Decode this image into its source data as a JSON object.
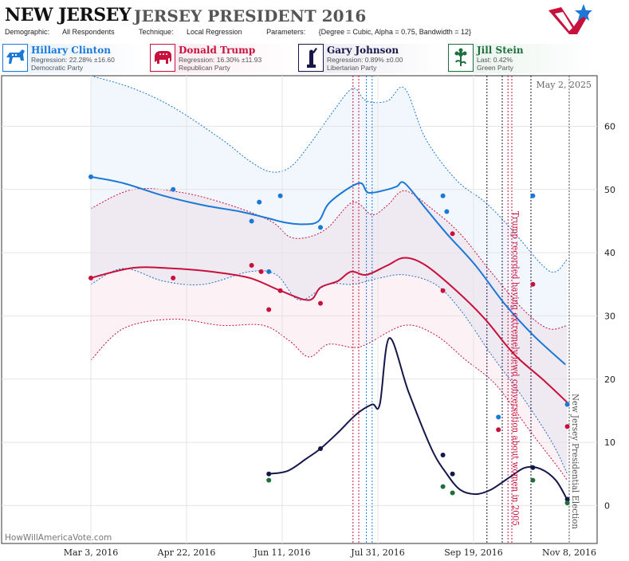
{
  "header": {
    "state": "NEW JERSEY",
    "race": "JERSEY PRESIDENT 2016",
    "demographic_label": "Demographic:",
    "demographic": "All Respondents",
    "technique_label": "Technique:",
    "technique": "Local Regression",
    "parameters_label": "Parameters:",
    "parameters": "{Degree = Cubic, Alpha = 0.75, Bandwidth = 12}"
  },
  "candidates": [
    {
      "name": "Hillary Clinton",
      "stat": "Regression: 22.28% ±16.60",
      "party": "Democratic Party",
      "color": "#1a78d6",
      "bg": "#e6f0fb",
      "icon": "donkey-icon"
    },
    {
      "name": "Donald Trump",
      "stat": "Regression: 16.30% ±11.93",
      "party": "Republican Party",
      "color": "#c8103c",
      "bg": "#fbe8ee",
      "icon": "elephant-icon"
    },
    {
      "name": "Gary Johnson",
      "stat": "Regression: 0.89% ±0.00",
      "party": "Libertarian Party",
      "color": "#15164a",
      "bg": "#e9e9f1",
      "icon": "liberty-statue-icon"
    },
    {
      "name": "Jill Stein",
      "stat": "Last: 0.42%",
      "party": "Green Party",
      "color": "#1f6f3c",
      "bg": "#e6f2ea",
      "icon": "flower-icon"
    }
  ],
  "chart_data": {
    "type": "line",
    "date_label": "May 2, 2025",
    "watermark": "HowWillAmericaVote.com",
    "x_tick_labels": [
      "Mar 3, 2016",
      "Apr 22, 2016",
      "Jun 11, 2016",
      "Jul 31, 2016",
      "Sep 19, 2016",
      "Nov 8, 2016"
    ],
    "y_ticks": [
      0,
      10,
      20,
      30,
      40,
      50,
      60
    ],
    "y_range": [
      -6,
      68
    ],
    "x_range": [
      "2016-03-03",
      "2016-11-08"
    ],
    "annotations": [
      {
        "text": "Trump recorded having extremely lewd conversation about women in 2005",
        "date": "2016-10-07",
        "color": "#c8103c"
      },
      {
        "text": "New Jersey Presidential Election",
        "date": "2016-11-08",
        "color": "#555555"
      }
    ],
    "event_lines": [
      {
        "date": "2016-07-18",
        "color": "#c8103c"
      },
      {
        "date": "2016-07-21",
        "color": "#c8103c"
      },
      {
        "date": "2016-07-25",
        "color": "#1a78d6"
      },
      {
        "date": "2016-07-28",
        "color": "#1a78d6"
      },
      {
        "date": "2016-09-26",
        "color": "#15164a"
      },
      {
        "date": "2016-10-04",
        "color": "#15164a"
      },
      {
        "date": "2016-10-09",
        "color": "#c8103c"
      },
      {
        "date": "2016-10-19",
        "color": "#15164a"
      }
    ],
    "series": [
      {
        "name": "Hillary Clinton",
        "color": "#1a78d6",
        "line": [
          [
            "2016-03-03",
            52.0
          ],
          [
            "2016-03-20",
            51.0
          ],
          [
            "2016-04-10",
            49.0
          ],
          [
            "2016-05-01",
            47.5
          ],
          [
            "2016-05-20",
            46.5
          ],
          [
            "2016-06-03",
            45.5
          ],
          [
            "2016-06-12",
            44.8
          ],
          [
            "2016-06-22",
            44.5
          ],
          [
            "2016-06-30",
            45.0
          ],
          [
            "2016-07-06",
            48.0
          ],
          [
            "2016-07-21",
            51.0
          ],
          [
            "2016-07-26",
            49.5
          ],
          [
            "2016-08-05",
            50.0
          ],
          [
            "2016-08-10",
            50.5
          ],
          [
            "2016-08-14",
            51.0
          ],
          [
            "2016-08-25",
            47.0
          ],
          [
            "2016-09-05",
            43.0
          ],
          [
            "2016-09-20",
            38.0
          ],
          [
            "2016-10-05",
            32.0
          ],
          [
            "2016-10-20",
            27.0
          ],
          [
            "2016-11-06",
            22.3
          ]
        ],
        "upper": [
          [
            "2016-03-03",
            68.0
          ],
          [
            "2016-03-25",
            66.0
          ],
          [
            "2016-04-15",
            63.0
          ],
          [
            "2016-05-10",
            58.0
          ],
          [
            "2016-05-25",
            54.5
          ],
          [
            "2016-06-05",
            52.8
          ],
          [
            "2016-06-15",
            53.5
          ],
          [
            "2016-06-25",
            57.0
          ],
          [
            "2016-07-08",
            62.5
          ],
          [
            "2016-07-18",
            66.0
          ],
          [
            "2016-07-25",
            64.0
          ],
          [
            "2016-08-05",
            64.0
          ],
          [
            "2016-08-14",
            66.0
          ],
          [
            "2016-08-25",
            58.0
          ],
          [
            "2016-09-10",
            51.5
          ],
          [
            "2016-09-25",
            48.0
          ],
          [
            "2016-10-08",
            44.0
          ],
          [
            "2016-10-25",
            38.0
          ],
          [
            "2016-11-01",
            37.0
          ],
          [
            "2016-11-07",
            39.0
          ]
        ],
        "lower": [
          [
            "2016-03-03",
            35.0
          ],
          [
            "2016-03-20",
            37.5
          ],
          [
            "2016-04-10",
            35.5
          ],
          [
            "2016-05-01",
            35.0
          ],
          [
            "2016-05-25",
            37.0
          ],
          [
            "2016-06-08",
            36.5
          ],
          [
            "2016-06-20",
            32.5
          ],
          [
            "2016-07-05",
            35.0
          ],
          [
            "2016-07-18",
            35.0
          ],
          [
            "2016-08-01",
            36.0
          ],
          [
            "2016-08-14",
            36.5
          ],
          [
            "2016-08-30",
            35.0
          ],
          [
            "2016-09-12",
            31.0
          ],
          [
            "2016-09-28",
            24.0
          ],
          [
            "2016-10-15",
            17.0
          ],
          [
            "2016-10-30",
            10.0
          ],
          [
            "2016-11-07",
            5.0
          ]
        ],
        "points": [
          [
            "2016-03-03",
            52
          ],
          [
            "2016-04-15",
            50
          ],
          [
            "2016-05-26",
            45
          ],
          [
            "2016-05-30",
            48
          ],
          [
            "2016-06-04",
            37
          ],
          [
            "2016-06-10",
            49
          ],
          [
            "2016-07-01",
            44
          ],
          [
            "2016-09-03",
            49
          ],
          [
            "2016-09-05",
            46.5
          ],
          [
            "2016-10-02",
            14
          ],
          [
            "2016-10-20",
            49
          ],
          [
            "2016-11-07",
            16
          ]
        ]
      },
      {
        "name": "Donald Trump",
        "color": "#c8103c",
        "line": [
          [
            "2016-03-03",
            36.0
          ],
          [
            "2016-03-25",
            37.6
          ],
          [
            "2016-04-15",
            37.5
          ],
          [
            "2016-05-05",
            37.0
          ],
          [
            "2016-05-25",
            36.0
          ],
          [
            "2016-06-10",
            34.0
          ],
          [
            "2016-06-25",
            32.5
          ],
          [
            "2016-07-01",
            34.5
          ],
          [
            "2016-07-10",
            35.5
          ],
          [
            "2016-07-17",
            37.0
          ],
          [
            "2016-07-25",
            36.5
          ],
          [
            "2016-08-05",
            38.0
          ],
          [
            "2016-08-14",
            39.2
          ],
          [
            "2016-08-25",
            38.0
          ],
          [
            "2016-09-10",
            34.0
          ],
          [
            "2016-09-25",
            29.5
          ],
          [
            "2016-10-10",
            24.0
          ],
          [
            "2016-10-25",
            20.0
          ],
          [
            "2016-11-07",
            16.3
          ]
        ],
        "upper": [
          [
            "2016-03-03",
            47.0
          ],
          [
            "2016-03-25",
            50.0
          ],
          [
            "2016-04-20",
            49.5
          ],
          [
            "2016-05-15",
            47.5
          ],
          [
            "2016-06-05",
            45.0
          ],
          [
            "2016-06-15",
            42.5
          ],
          [
            "2016-06-25",
            42.5
          ],
          [
            "2016-07-05",
            44.0
          ],
          [
            "2016-07-18",
            48.0
          ],
          [
            "2016-07-28",
            46.0
          ],
          [
            "2016-08-05",
            47.5
          ],
          [
            "2016-08-14",
            49.8
          ],
          [
            "2016-08-28",
            47.0
          ],
          [
            "2016-09-12",
            43.0
          ],
          [
            "2016-09-28",
            37.0
          ],
          [
            "2016-10-15",
            31.0
          ],
          [
            "2016-10-28",
            28.0
          ],
          [
            "2016-11-07",
            28.5
          ]
        ],
        "lower": [
          [
            "2016-03-03",
            23.0
          ],
          [
            "2016-03-20",
            28.0
          ],
          [
            "2016-04-15",
            29.5
          ],
          [
            "2016-05-10",
            28.5
          ],
          [
            "2016-06-01",
            28.5
          ],
          [
            "2016-06-15",
            26.0
          ],
          [
            "2016-06-25",
            23.5
          ],
          [
            "2016-07-05",
            25.5
          ],
          [
            "2016-07-18",
            25.0
          ],
          [
            "2016-07-25",
            25.5
          ],
          [
            "2016-08-14",
            28.5
          ],
          [
            "2016-08-30",
            27.0
          ],
          [
            "2016-09-15",
            23.0
          ],
          [
            "2016-10-01",
            19.0
          ],
          [
            "2016-10-18",
            12.0
          ],
          [
            "2016-11-01",
            6.5
          ],
          [
            "2016-11-07",
            4.0
          ]
        ],
        "points": [
          [
            "2016-03-03",
            36
          ],
          [
            "2016-04-15",
            36
          ],
          [
            "2016-05-26",
            38
          ],
          [
            "2016-05-31",
            37
          ],
          [
            "2016-06-04",
            31
          ],
          [
            "2016-06-10",
            34
          ],
          [
            "2016-07-01",
            32
          ],
          [
            "2016-09-03",
            34
          ],
          [
            "2016-09-08",
            43
          ],
          [
            "2016-10-02",
            12
          ],
          [
            "2016-10-20",
            35
          ],
          [
            "2016-11-07",
            12.5
          ]
        ]
      },
      {
        "name": "Gary Johnson",
        "color": "#15164a",
        "line": [
          [
            "2016-06-04",
            5.0
          ],
          [
            "2016-06-14",
            5.5
          ],
          [
            "2016-06-24",
            7.5
          ],
          [
            "2016-07-01",
            9.0
          ],
          [
            "2016-07-10",
            11.5
          ],
          [
            "2016-07-20",
            14.5
          ],
          [
            "2016-07-28",
            16.0
          ],
          [
            "2016-08-01",
            16.0
          ],
          [
            "2016-08-06",
            26.5
          ],
          [
            "2016-08-16",
            18.0
          ],
          [
            "2016-08-28",
            9.0
          ],
          [
            "2016-09-05",
            5.0
          ],
          [
            "2016-09-12",
            2.5
          ],
          [
            "2016-09-20",
            1.8
          ],
          [
            "2016-09-28",
            2.5
          ],
          [
            "2016-10-08",
            4.5
          ],
          [
            "2016-10-16",
            6.0
          ],
          [
            "2016-10-24",
            5.8
          ],
          [
            "2016-11-01",
            4.0
          ],
          [
            "2016-11-07",
            0.9
          ]
        ],
        "points": [
          [
            "2016-06-04",
            5
          ],
          [
            "2016-07-01",
            9
          ],
          [
            "2016-09-03",
            8
          ],
          [
            "2016-09-08",
            5
          ],
          [
            "2016-10-20",
            6
          ],
          [
            "2016-11-07",
            1
          ]
        ]
      },
      {
        "name": "Jill Stein",
        "color": "#1f6f3c",
        "points": [
          [
            "2016-06-04",
            4
          ],
          [
            "2016-09-03",
            3
          ],
          [
            "2016-09-08",
            2
          ],
          [
            "2016-10-20",
            4
          ],
          [
            "2016-11-07",
            0.42
          ]
        ]
      }
    ]
  }
}
